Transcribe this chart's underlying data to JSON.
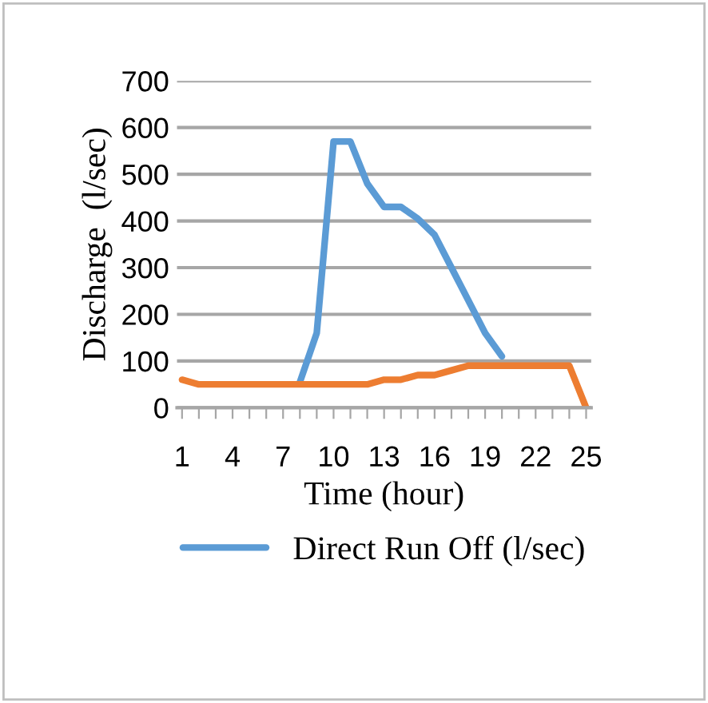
{
  "chart_data": {
    "type": "line",
    "categories": [
      "1",
      null,
      null,
      "4",
      null,
      null,
      "7",
      null,
      null,
      "10",
      null,
      null,
      "13",
      null,
      null,
      "16",
      null,
      null,
      "19",
      null,
      null,
      "22",
      null,
      null,
      "25"
    ],
    "series": [
      {
        "name": "Direct Run Off (l/sec)",
        "color": "#5b9bd5",
        "values": [
          null,
          null,
          null,
          null,
          null,
          null,
          null,
          55,
          160,
          570,
          570,
          480,
          430,
          430,
          405,
          370,
          300,
          230,
          160,
          110,
          null,
          null,
          null,
          null,
          null
        ]
      },
      {
        "color": "#ed7d31",
        "values": [
          60,
          50,
          50,
          50,
          50,
          50,
          50,
          50,
          50,
          50,
          50,
          50,
          60,
          60,
          70,
          70,
          80,
          90,
          90,
          90,
          90,
          90,
          90,
          90,
          0
        ]
      }
    ],
    "xlabel": "Time (hour)",
    "ylabel": "Discharge  (l/sec)",
    "ylim": [
      0,
      700
    ],
    "yticks": [
      0,
      100,
      200,
      300,
      400,
      500,
      600,
      700
    ],
    "grid": "y",
    "legend": "bottom",
    "marker": "none",
    "line_style": "solid"
  }
}
